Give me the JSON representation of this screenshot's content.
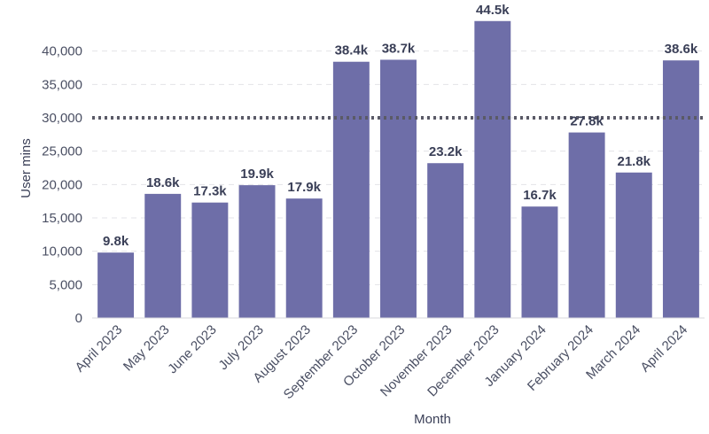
{
  "chart_data": {
    "type": "bar",
    "categories": [
      "April 2023",
      "May 2023",
      "June 2023",
      "July 2023",
      "August 2023",
      "September 2023",
      "October 2023",
      "November 2023",
      "December 2023",
      "January 2024",
      "February 2024",
      "March 2024",
      "April 2024"
    ],
    "values": [
      9800,
      18600,
      17300,
      19900,
      17900,
      38400,
      38700,
      23200,
      44500,
      16700,
      27800,
      21800,
      38600
    ],
    "data_labels": [
      "9.8k",
      "18.6k",
      "17.3k",
      "19.9k",
      "17.9k",
      "38.4k",
      "38.7k",
      "23.2k",
      "44.5k",
      "16.7k",
      "27.8k",
      "21.8k",
      "38.6k"
    ],
    "xlabel": "Month",
    "ylabel": "User mins",
    "ylim": [
      0,
      45000
    ],
    "yticks": [
      0,
      5000,
      10000,
      15000,
      20000,
      25000,
      30000,
      35000,
      40000
    ],
    "ytick_labels": [
      "0",
      "5,000",
      "10,000",
      "15,000",
      "20,000",
      "25,000",
      "30,000",
      "35,000",
      "40,000"
    ],
    "reference_line": 30000,
    "grid": true,
    "legend": "none",
    "colors": {
      "bar": "#6e6ea8",
      "reference_line": "#5a5a66",
      "text": "#3a3f57",
      "grid": "#e3e3e8"
    }
  }
}
